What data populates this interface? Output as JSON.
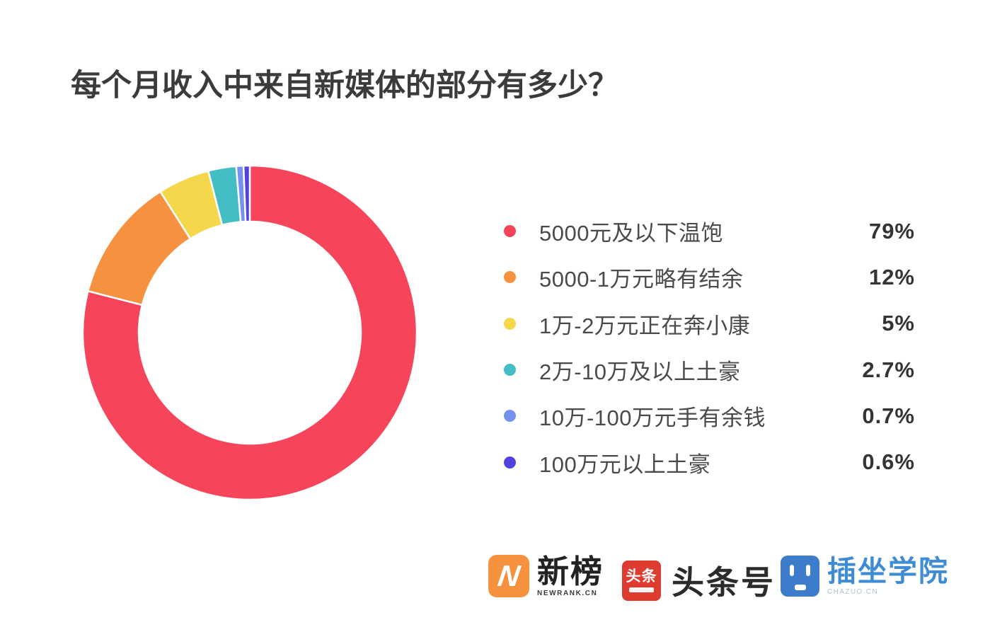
{
  "title": "每个月收入中来自新媒体的部分有多少？",
  "chart_data": {
    "type": "pie",
    "subtype": "donut",
    "title": "每个月收入中来自新媒体的部分有多少？",
    "legend_position": "right",
    "start_angle_deg": 0,
    "direction": "clockwise",
    "donut_hole_ratio": 0.665,
    "segments": [
      {
        "label": "5000元及以下温饱",
        "value_pct": 79,
        "display": "79%",
        "color": "#F6455A"
      },
      {
        "label": "5000-1万元略有结余",
        "value_pct": 12,
        "display": "12%",
        "color": "#F69140"
      },
      {
        "label": "1万-2万元正在奔小康",
        "value_pct": 5,
        "display": "5%",
        "color": "#F5D74B"
      },
      {
        "label": "2万-10万及以上土豪",
        "value_pct": 2.7,
        "display": "2.7%",
        "color": "#43BEC4"
      },
      {
        "label": "10万-100万元手有余钱",
        "value_pct": 0.7,
        "display": "0.7%",
        "color": "#7492EE"
      },
      {
        "label": "100万元以上土豪",
        "value_pct": 0.6,
        "display": "0.6%",
        "color": "#5243DC"
      }
    ]
  },
  "footer": {
    "logos": [
      {
        "name": "newrank",
        "icon": "newrank-n-icon",
        "icon_letter": "N",
        "icon_color": "#F6913D",
        "text": "新榜",
        "subtext": "NEWRANK.CN"
      },
      {
        "name": "toutiao",
        "icon": "toutiao-icon",
        "icon_text": "头条",
        "icon_color": "#DE3C31",
        "text": "头条号"
      },
      {
        "name": "chazuo",
        "icon": "chazuo-face-icon",
        "icon_color": "#3C7CCB",
        "text": "插坐学院",
        "text_color": "#3F8CD5",
        "subtext": "CHAZUO.CN"
      }
    ]
  }
}
